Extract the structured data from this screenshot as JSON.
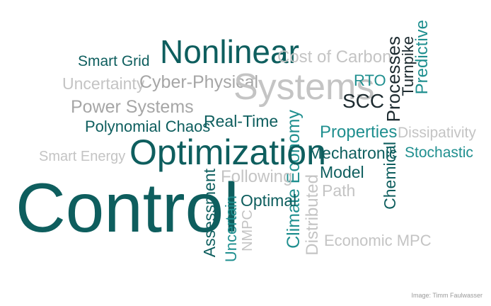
{
  "words": {
    "smart_grid": "Smart Grid",
    "nonlinear": "Nonlinear",
    "cost_of_carbon": "Cost of Carbon",
    "uncertainty": "Uncertainty",
    "cyber_physical": "Cyber-Physical",
    "systems": "Systems",
    "rto": "RTO",
    "scc": "SCC",
    "processes": "Processes",
    "turnpike": "Turnpike",
    "predictive": "Predictive",
    "power_systems": "Power Systems",
    "polynomial_chaos": "Polynomial Chaos",
    "real_time": "Real-Time",
    "climate_economy": "Climate Economy",
    "properties": "Properties",
    "dissipativity": "Dissipativity",
    "smart_energy": "Smart Energy",
    "optimization": "Optimization",
    "mechatronic": "Mechatronic",
    "chemical": "Chemical",
    "stochastic": "Stochastic",
    "control": "Control",
    "assessment": "Assessment",
    "following": "Following",
    "model": "Model",
    "uncertain": "Uncertain",
    "nmpc": "NMPC",
    "optimal": "Optimal",
    "distributed": "Distributed",
    "path": "Path",
    "economic_mpc": "Economic MPC"
  },
  "caption": "Image: Timm Faulwasser",
  "colors": {
    "teal": "#1f8f8f",
    "dark_teal": "#0e5e5e",
    "ink": "#1c2a2f",
    "gray": "#a6a6a6",
    "light_gray": "#c4c4c4",
    "background": "#ffffff"
  }
}
